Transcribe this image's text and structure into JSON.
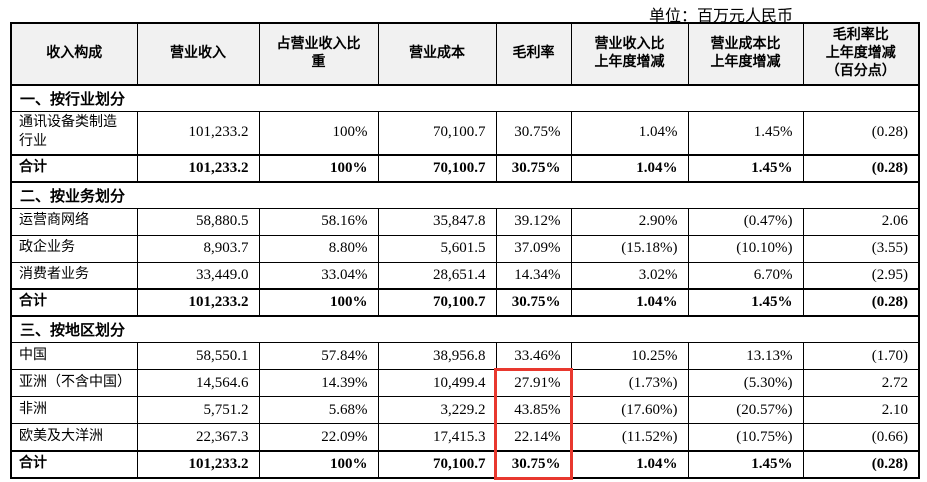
{
  "unit_label": "单位：百万元人民币",
  "colors": {
    "highlight_red": "#e8382e",
    "header_background": "#f1f1f1",
    "table_border": "#000000",
    "text": "#000000"
  },
  "table": {
    "columns": [
      {
        "label": "收入构成"
      },
      {
        "label": "营业收入"
      },
      {
        "label": "占营业收入比\n重"
      },
      {
        "label": "营业成本"
      },
      {
        "label": "毛利率"
      },
      {
        "label": "营业收入比\n上年度增减"
      },
      {
        "label": "营业成本比\n上年度增减"
      },
      {
        "label": "毛利率比\n上年度增减\n（百分点）"
      }
    ],
    "sections": [
      {
        "header": "一、按行业划分",
        "rows": [
          {
            "label": "通讯设备类制造\n行业",
            "bold": false,
            "values": [
              "101,233.2",
              "100%",
              "70,100.7",
              "30.75%",
              "1.04%",
              "1.45%",
              "(0.28)"
            ]
          },
          {
            "label": "合计",
            "bold": true,
            "values": [
              "101,233.2",
              "100%",
              "70,100.7",
              "30.75%",
              "1.04%",
              "1.45%",
              "(0.28)"
            ]
          }
        ]
      },
      {
        "header": "二、按业务划分",
        "rows": [
          {
            "label": "运营商网络",
            "bold": false,
            "values": [
              "58,880.5",
              "58.16%",
              "35,847.8",
              "39.12%",
              "2.90%",
              "(0.47%)",
              "2.06"
            ]
          },
          {
            "label": "政企业务",
            "bold": false,
            "values": [
              "8,903.7",
              "8.80%",
              "5,601.5",
              "37.09%",
              "(15.18%)",
              "(10.10%)",
              "(3.55)"
            ]
          },
          {
            "label": "消费者业务",
            "bold": false,
            "values": [
              "33,449.0",
              "33.04%",
              "28,651.4",
              "14.34%",
              "3.02%",
              "6.70%",
              "(2.95)"
            ]
          },
          {
            "label": "合计",
            "bold": true,
            "values": [
              "101,233.2",
              "100%",
              "70,100.7",
              "30.75%",
              "1.04%",
              "1.45%",
              "(0.28)"
            ]
          }
        ]
      },
      {
        "header": "三、按地区划分",
        "rows": [
          {
            "label": "中国",
            "bold": false,
            "values": [
              "58,550.1",
              "57.84%",
              "38,956.8",
              "33.46%",
              "10.25%",
              "13.13%",
              "(1.70)"
            ]
          },
          {
            "label": "亚洲（不含中国）",
            "bold": false,
            "values": [
              "14,564.6",
              "14.39%",
              "10,499.4",
              "27.91%",
              "(1.73%)",
              "(5.30%)",
              "2.72"
            ]
          },
          {
            "label": "非洲",
            "bold": false,
            "values": [
              "5,751.2",
              "5.68%",
              "3,229.2",
              "43.85%",
              "(17.60%)",
              "(20.57%)",
              "2.10"
            ]
          },
          {
            "label": "欧美及大洋洲",
            "bold": false,
            "values": [
              "22,367.3",
              "22.09%",
              "17,415.3",
              "22.14%",
              "(11.52%)",
              "(10.75%)",
              "(0.66)"
            ]
          },
          {
            "label": "合计",
            "bold": true,
            "values": [
              "101,233.2",
              "100%",
              "70,100.7",
              "30.75%",
              "1.04%",
              "1.45%",
              "(0.28)"
            ]
          }
        ]
      }
    ]
  },
  "highlight": {
    "target": "gross-margin-cells-region-section",
    "section_index": 2,
    "column_index": 4,
    "row_start": 1,
    "row_end": 4,
    "color": "#e8382e"
  }
}
